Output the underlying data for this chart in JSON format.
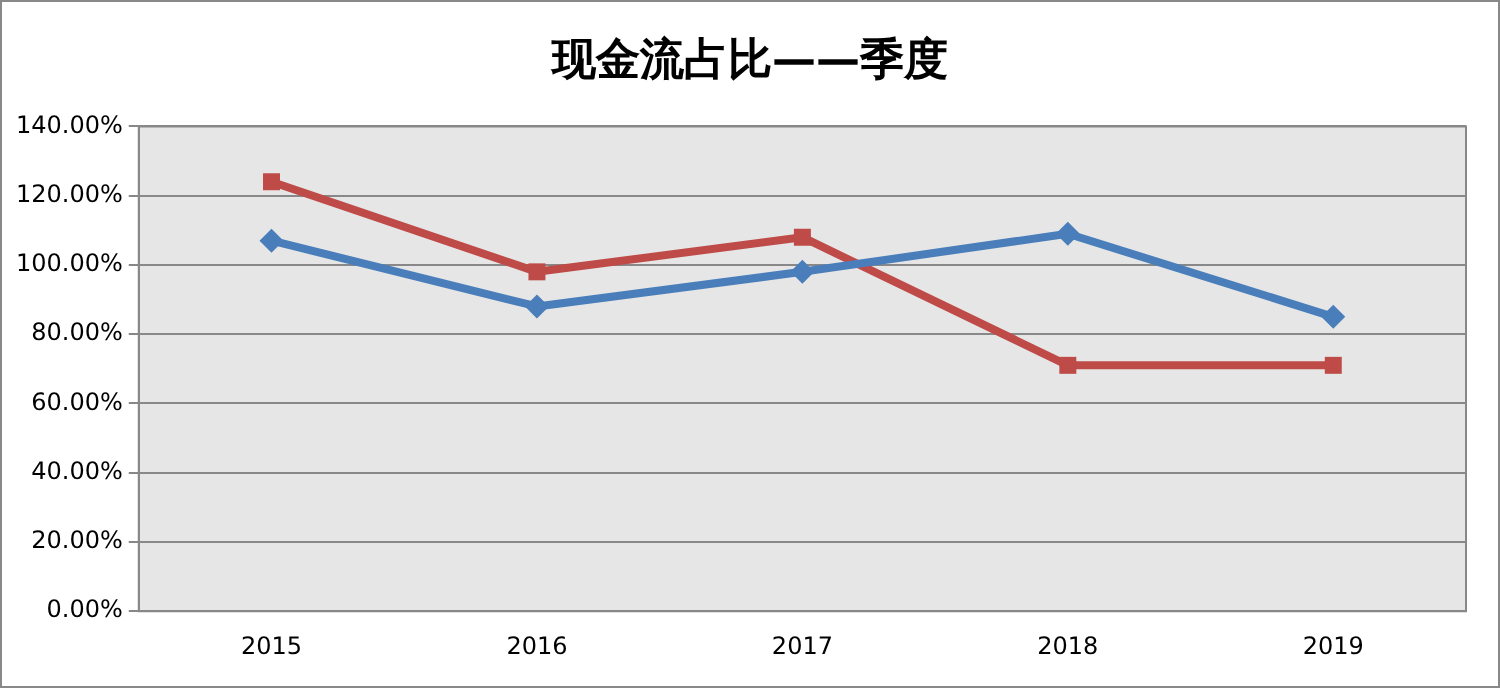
{
  "chart_data": {
    "type": "line",
    "title": "现金流占比——季度",
    "categories": [
      "2015",
      "2016",
      "2017",
      "2018",
      "2019"
    ],
    "series": [
      {
        "color": "#4a7ebb",
        "marker": "diamond",
        "values": [
          107,
          88,
          98,
          109,
          85
        ]
      },
      {
        "color": "#be4b48",
        "marker": "square",
        "values": [
          124,
          98,
          108,
          71,
          71
        ]
      }
    ],
    "ylim": [
      0,
      140
    ],
    "yticks": [
      {
        "value": 0,
        "label": "0.00%"
      },
      {
        "value": 20,
        "label": "20.00%"
      },
      {
        "value": 40,
        "label": "40.00%"
      },
      {
        "value": 60,
        "label": "60.00%"
      },
      {
        "value": 80,
        "label": "80.00%"
      },
      {
        "value": 100,
        "label": "100.00%"
      },
      {
        "value": 120,
        "label": "120.00%"
      },
      {
        "value": 140,
        "label": "140.00%"
      }
    ],
    "grid": "y",
    "legend": false,
    "line_style": "solid"
  }
}
